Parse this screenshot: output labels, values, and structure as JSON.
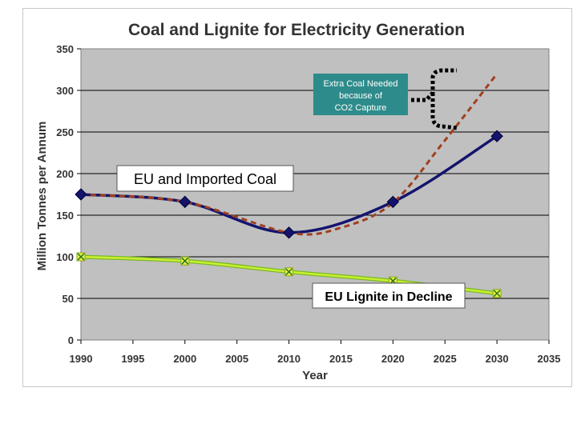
{
  "chart_data": {
    "type": "line",
    "title": "Coal and Lignite for Electricity Generation",
    "xlabel": "Year",
    "ylabel": "Million Tonnes per Annum",
    "xlim": [
      1990,
      2035
    ],
    "ylim": [
      0,
      350
    ],
    "x_ticks": [
      1990,
      1995,
      2000,
      2005,
      2010,
      2015,
      2020,
      2025,
      2030,
      2035
    ],
    "y_ticks": [
      0,
      50,
      100,
      150,
      200,
      250,
      300,
      350
    ],
    "grid": true,
    "legend": "none",
    "series": [
      {
        "key": "coal",
        "x": [
          1990,
          2000,
          2010,
          2020,
          2030
        ],
        "values": [
          175,
          166,
          129,
          166,
          245
        ],
        "color": "#14146e",
        "marker": "diamond",
        "style": "solid"
      },
      {
        "key": "coal-ccs",
        "x": [
          1990,
          2000,
          2010,
          2015,
          2020,
          2025,
          2030
        ],
        "values": [
          175,
          166,
          129,
          135,
          165,
          240,
          320
        ],
        "color": "#a0401e",
        "marker": "none",
        "style": "dashed"
      },
      {
        "key": "lignite",
        "x": [
          1990,
          2000,
          2010,
          2020,
          2030
        ],
        "values": [
          100,
          95,
          82,
          71,
          56
        ],
        "color": "#ccee33",
        "marker": "x-square",
        "style": "solid"
      }
    ],
    "annotations": {
      "coal_label": "EU and Imported Coal",
      "lignite_label": "EU Lignite in Decline",
      "ccs_label": [
        "Extra Coal Needed",
        "because of",
        "CO2 Capture"
      ]
    },
    "colors": {
      "plot_bg": "#c0c0c0",
      "gridline": "#000000",
      "annotation_box": "#2e8b8b",
      "annotation_text": "#ffffff"
    }
  }
}
